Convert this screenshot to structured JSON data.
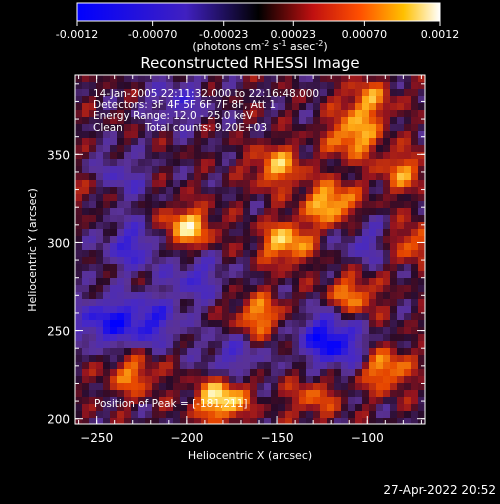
{
  "chart_data": {
    "type": "heatmap",
    "title": "Reconstructed RHESSI Image",
    "xlabel": "Heliocentric X (arcsec)",
    "ylabel": "Heliocentric Y (arcsec)",
    "xlim": [
      -262,
      -68
    ],
    "ylim": [
      197,
      395
    ],
    "x_ticks": [
      -250,
      -200,
      -150,
      -100
    ],
    "y_ticks": [
      200,
      250,
      300,
      350
    ],
    "colorbar": {
      "min": -0.0012,
      "max": 0.0012,
      "ticks": [
        "-0.0012",
        "-0.00070",
        "-0.00023",
        "0.00023",
        "0.00070",
        "0.0012"
      ],
      "tick_values": [
        -0.0012,
        -0.0007,
        -0.00023,
        0.00023,
        0.0007,
        0.0012
      ],
      "units_label": "(photons cm",
      "units_exp1": "-2",
      "units_mid": " s",
      "units_exp2": "-1",
      "units_end": " asec",
      "units_exp3": "-2",
      "units_close": ")"
    },
    "annotations": {
      "time_range": "14-Jan-2005 22:11:32.000 to 22:16:48.000",
      "detectors": "Detectors: 3F 4F 5F 6F 7F 8F, Att 1",
      "energy": "Energy Range: 12.0 - 25.0 keV",
      "method": "Clean",
      "counts": "Total counts: 9.20E+03",
      "peak": "Position of Peak = [-181,211]"
    },
    "hot_regions": [
      {
        "x": -181,
        "y": 211,
        "level": 1.0
      },
      {
        "x": -200,
        "y": 308,
        "level": 0.85
      },
      {
        "x": -145,
        "y": 300,
        "level": 0.8
      },
      {
        "x": -120,
        "y": 322,
        "level": 0.85
      },
      {
        "x": -108,
        "y": 360,
        "level": 0.75
      },
      {
        "x": -150,
        "y": 343,
        "level": 0.7
      },
      {
        "x": -160,
        "y": 258,
        "level": 0.65
      },
      {
        "x": -90,
        "y": 228,
        "level": 0.7
      },
      {
        "x": -108,
        "y": 270,
        "level": 0.6
      },
      {
        "x": -230,
        "y": 225,
        "level": 0.55
      },
      {
        "x": -100,
        "y": 380,
        "level": 0.6
      },
      {
        "x": -80,
        "y": 340,
        "level": 0.55
      },
      {
        "x": -130,
        "y": 212,
        "level": 0.45
      },
      {
        "x": -75,
        "y": 300,
        "level": 0.55
      },
      {
        "x": -250,
        "y": 330,
        "level": 0.4
      }
    ],
    "cold_regions": [
      {
        "x": -245,
        "y": 255,
        "level": 0.75
      },
      {
        "x": -220,
        "y": 255,
        "level": 0.65
      },
      {
        "x": -230,
        "y": 298,
        "level": 0.6
      },
      {
        "x": -125,
        "y": 248,
        "level": 0.6
      },
      {
        "x": -115,
        "y": 240,
        "level": 0.55
      },
      {
        "x": -240,
        "y": 335,
        "level": 0.55
      },
      {
        "x": -195,
        "y": 280,
        "level": 0.5
      },
      {
        "x": -205,
        "y": 380,
        "level": 0.45
      },
      {
        "x": -175,
        "y": 235,
        "level": 0.45
      },
      {
        "x": -100,
        "y": 300,
        "level": 0.4
      }
    ]
  },
  "footer": {
    "timestamp": "27-Apr-2022 20:52"
  }
}
